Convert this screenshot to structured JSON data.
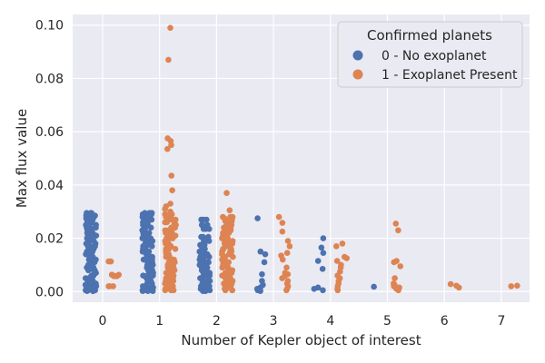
{
  "chart_data": {
    "type": "scatter",
    "style": "strip (categorical jitter) plot, grid on, light grey background",
    "xlabel": "Number of Kepler object of interest",
    "ylabel": "Max flux value",
    "categories": [
      "0",
      "1",
      "2",
      "3",
      "4",
      "5",
      "6",
      "7"
    ],
    "ylim": [
      -0.004,
      0.104
    ],
    "yticks": [
      0.0,
      0.02,
      0.04,
      0.06,
      0.08,
      0.1
    ],
    "ytick_labels": [
      "0.00",
      "0.02",
      "0.04",
      "0.06",
      "0.08",
      "0.10"
    ],
    "grid": true,
    "legend": {
      "title": "Confirmed planets",
      "placement": "upper right",
      "entries": [
        "0 - No exoplanet",
        "1 - Exoplanet Present"
      ]
    },
    "colors": {
      "background": "#EAEAF2",
      "grid": "#FFFFFF",
      "0 - No exoplanet": "#4C72B0",
      "1 - Exoplanet Present": "#DD8452"
    },
    "series": [
      {
        "name": "0 - No exoplanet",
        "category_index": [
          0,
          1,
          2,
          3,
          4,
          5
        ],
        "points": {
          "0": [
            0.0295,
            0.029,
            0.0285,
            0.028,
            0.0275,
            0.027,
            0.026,
            0.025,
            0.024,
            0.023,
            0.022,
            0.021,
            0.02,
            0.019,
            0.018,
            0.017,
            0.016,
            0.015,
            0.014,
            0.013,
            0.012,
            0.011,
            0.01,
            0.009,
            0.008,
            0.007,
            0.006,
            0.005,
            0.004,
            0.003,
            0.0025,
            0.002,
            0.0015,
            0.001,
            0.0005,
            0.0002
          ],
          "1": [
            0.0295,
            0.029,
            0.028,
            0.027,
            0.026,
            0.025,
            0.024,
            0.023,
            0.022,
            0.021,
            0.02,
            0.019,
            0.018,
            0.017,
            0.016,
            0.015,
            0.014,
            0.013,
            0.012,
            0.011,
            0.01,
            0.009,
            0.008,
            0.007,
            0.006,
            0.005,
            0.004,
            0.003,
            0.002,
            0.0015,
            0.001,
            0.0005,
            0.0002
          ],
          "2": [
            0.027,
            0.025,
            0.0235,
            0.0205,
            0.019,
            0.0175,
            0.016,
            0.015,
            0.014,
            0.013,
            0.012,
            0.011,
            0.01,
            0.009,
            0.008,
            0.007,
            0.006,
            0.005,
            0.004,
            0.003,
            0.002,
            0.0015,
            0.001,
            0.0005,
            0.0002
          ],
          "3": [
            0.0275,
            0.015,
            0.014,
            0.011,
            0.0065,
            0.004,
            0.0025,
            0.0015,
            0.001,
            0.0005,
            0.0002
          ],
          "4": [
            0.02,
            0.0165,
            0.0145,
            0.0115,
            0.0085,
            0.0015,
            0.001,
            0.0005
          ],
          "5": [
            0.0018
          ]
        }
      },
      {
        "name": "1 - Exoplanet Present",
        "category_index": [
          0,
          1,
          2,
          3,
          4,
          5,
          6,
          7
        ],
        "points": {
          "0": [
            0.0113,
            0.0063,
            0.0058,
            0.002
          ],
          "1": [
            0.099,
            0.087,
            0.0575,
            0.0565,
            0.055,
            0.0535,
            0.0435,
            0.038,
            0.033,
            0.032,
            0.031,
            0.03,
            0.029,
            0.028,
            0.027,
            0.026,
            0.025,
            0.024,
            0.023,
            0.022,
            0.021,
            0.02,
            0.019,
            0.018,
            0.017,
            0.016,
            0.015,
            0.014,
            0.013,
            0.012,
            0.011,
            0.01,
            0.009,
            0.008,
            0.007,
            0.006,
            0.005,
            0.004,
            0.003,
            0.002,
            0.001,
            0.0005
          ],
          "2": [
            0.037,
            0.0305,
            0.028,
            0.0275,
            0.0265,
            0.025,
            0.024,
            0.023,
            0.022,
            0.021,
            0.02,
            0.019,
            0.018,
            0.017,
            0.016,
            0.015,
            0.014,
            0.013,
            0.012,
            0.011,
            0.01,
            0.009,
            0.008,
            0.007,
            0.006,
            0.005,
            0.004,
            0.003,
            0.002,
            0.001,
            0.0005
          ],
          "3": [
            0.028,
            0.0258,
            0.0225,
            0.019,
            0.017,
            0.0145,
            0.0135,
            0.012,
            0.009,
            0.007,
            0.0065,
            0.006,
            0.005,
            0.004,
            0.003,
            0.002,
            0.001,
            0.0005
          ],
          "4": [
            0.018,
            0.017,
            0.013,
            0.0125,
            0.0115,
            0.01,
            0.009,
            0.0075,
            0.006,
            0.005,
            0.004,
            0.003,
            0.002,
            0.001,
            0.0005
          ],
          "5": [
            0.0255,
            0.023,
            0.0115,
            0.011,
            0.0095,
            0.005,
            0.003,
            0.0025,
            0.002,
            0.0015,
            0.001,
            0.0005
          ],
          "6": [
            0.0028,
            0.0022,
            0.0015
          ],
          "7": [
            0.0022,
            0.002
          ]
        }
      }
    ]
  }
}
